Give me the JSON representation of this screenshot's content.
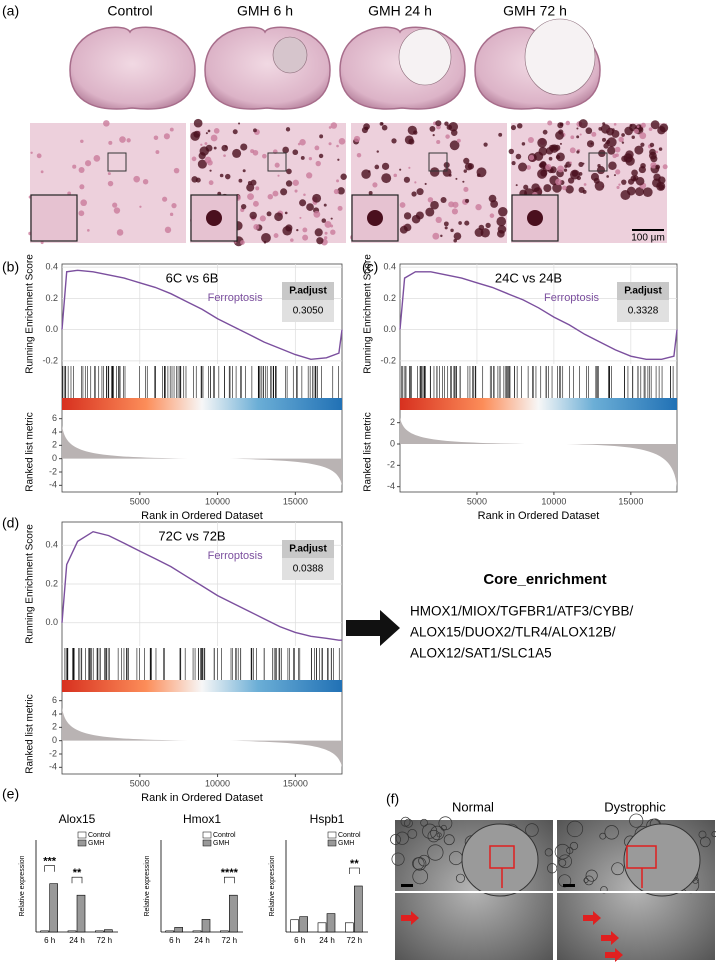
{
  "panel_labels": [
    "(a)",
    "(b)",
    "(c)",
    "(d)",
    "(e)",
    "(f)"
  ],
  "histology": {
    "groups": [
      "Control",
      "GMH 6 h",
      "GMH 24 h",
      "GMH 72 h"
    ],
    "scale_bar": "100 µm"
  },
  "core_enrichment": {
    "title": "Core_enrichment",
    "genes": [
      "HMOX1/MIOX/TGFBR1/ATF3/CYBB/",
      "ALOX15/DUOX2/TLR4/ALOX12B/",
      "ALOX12/SAT1/SLC1A5"
    ]
  },
  "em": {
    "conditions": [
      "Normal",
      "Dystrophic"
    ]
  },
  "chart_data": [
    {
      "type": "line",
      "title": "6C vs 6B",
      "x": [
        0,
        300,
        1000,
        2000,
        3000,
        4000,
        5000,
        6000,
        7000,
        8000,
        9000,
        10000,
        11000,
        12000,
        13000,
        14000,
        15000,
        16000,
        17000,
        17800,
        18000
      ],
      "series": [
        {
          "name": "Ferroptosis",
          "color": "#7b4f9e",
          "values": [
            0,
            0.37,
            0.38,
            0.37,
            0.35,
            0.33,
            0.3,
            0.27,
            0.23,
            0.18,
            0.13,
            0.07,
            0.02,
            -0.03,
            -0.08,
            -0.12,
            -0.16,
            -0.19,
            -0.18,
            -0.15,
            0
          ]
        }
      ],
      "xlabel": "Rank in Ordered Dataset",
      "ylabel": "Running Enrichment Score",
      "xlim": [
        0,
        18000
      ],
      "xticks": [
        5000,
        10000,
        15000
      ],
      "ylim": [
        -0.22,
        0.42
      ],
      "yticks": [
        -0.2,
        {
          "value": 0,
          "label": "0.0"
        },
        0.2,
        0.4
      ],
      "grid": true,
      "stat_label": "P.adjust",
      "stat_value": "0.3050",
      "metric_ylabel": "Ranked list metric",
      "metric_ylim": [
        -5,
        7
      ],
      "metric_yticks": [
        -4,
        -2,
        0,
        2,
        4,
        6
      ]
    },
    {
      "type": "line",
      "title": "24C vs 24B",
      "x": [
        0,
        300,
        1000,
        2000,
        3000,
        4000,
        5000,
        6000,
        7000,
        8000,
        9000,
        10000,
        11000,
        12000,
        13000,
        14000,
        15000,
        16000,
        17000,
        17800,
        18000
      ],
      "series": [
        {
          "name": "Ferroptosis",
          "color": "#7b4f9e",
          "values": [
            0,
            0.33,
            0.37,
            0.37,
            0.35,
            0.33,
            0.3,
            0.27,
            0.23,
            0.19,
            0.14,
            0.08,
            0.03,
            -0.03,
            -0.08,
            -0.13,
            -0.17,
            -0.19,
            -0.19,
            -0.17,
            0
          ]
        }
      ],
      "xlabel": "Rank in Ordered Dataset",
      "ylabel": "Running Enrichment Score",
      "xlim": [
        0,
        18000
      ],
      "xticks": [
        5000,
        10000,
        15000
      ],
      "ylim": [
        -0.22,
        0.42
      ],
      "yticks": [
        -0.2,
        {
          "value": 0,
          "label": "0.0"
        },
        0.2,
        0.4
      ],
      "grid": true,
      "stat_label": "P.adjust",
      "stat_value": "0.3328",
      "metric_ylabel": "Ranked list metric",
      "metric_ylim": [
        -4.5,
        3
      ],
      "metric_yticks": [
        -4,
        -2,
        0,
        2
      ]
    },
    {
      "type": "line",
      "title": "72C vs 72B",
      "x": [
        0,
        300,
        1000,
        2000,
        3000,
        4000,
        5000,
        6000,
        7000,
        8000,
        9000,
        10000,
        11000,
        12000,
        13000,
        14000,
        15000,
        16000,
        17000,
        17800,
        18000
      ],
      "series": [
        {
          "name": "Ferroptosis",
          "color": "#7b4f9e",
          "values": [
            0,
            0.3,
            0.42,
            0.47,
            0.45,
            0.41,
            0.37,
            0.33,
            0.29,
            0.24,
            0.19,
            0.14,
            0.1,
            0.06,
            0.02,
            -0.02,
            -0.05,
            -0.07,
            -0.08,
            -0.09,
            -0.09
          ]
        }
      ],
      "xlabel": "Rank in Ordered Dataset",
      "ylabel": "Running Enrichment Score",
      "xlim": [
        0,
        18000
      ],
      "xticks": [
        5000,
        10000,
        15000
      ],
      "ylim": [
        -0.12,
        0.52
      ],
      "yticks": [
        {
          "value": 0,
          "label": "0.0"
        },
        0.2,
        0.4
      ],
      "grid": true,
      "stat_label": "P.adjust",
      "stat_value": "0.0388",
      "metric_ylabel": "Ranked list metric",
      "metric_ylim": [
        -5,
        7
      ],
      "metric_yticks": [
        -4,
        -2,
        0,
        2,
        4,
        6
      ]
    },
    {
      "type": "bar",
      "title": "Alox15",
      "categories": [
        "6 h",
        "24 h",
        "72 h"
      ],
      "series": [
        {
          "name": "Control",
          "color": "#ffffff",
          "values": [
            1,
            1,
            1
          ]
        },
        {
          "name": "GMH",
          "color": "#999999",
          "values": [
            42,
            32,
            2
          ]
        }
      ],
      "ylabel": "Relative expression",
      "ylim": [
        0,
        80
      ],
      "significance": [
        "***",
        "**",
        null
      ]
    },
    {
      "type": "bar",
      "title": "Hmox1",
      "categories": [
        "6 h",
        "24 h",
        "72 h"
      ],
      "series": [
        {
          "name": "Control",
          "color": "#ffffff",
          "values": [
            5,
            5,
            5
          ]
        },
        {
          "name": "GMH",
          "color": "#999999",
          "values": [
            20,
            55,
            160
          ]
        }
      ],
      "ylabel": "Relative expression",
      "ylim": [
        0,
        400
      ],
      "significance": [
        null,
        null,
        "****"
      ]
    },
    {
      "type": "bar",
      "title": "Hspb1",
      "categories": [
        "6 h",
        "24 h",
        "72 h"
      ],
      "series": [
        {
          "name": "Control",
          "color": "#ffffff",
          "values": [
            40,
            30,
            30
          ]
        },
        {
          "name": "GMH",
          "color": "#999999",
          "values": [
            50,
            60,
            150
          ]
        }
      ],
      "ylabel": "Relative expression",
      "ylim": [
        0,
        300
      ],
      "significance": [
        null,
        null,
        "**"
      ]
    }
  ]
}
